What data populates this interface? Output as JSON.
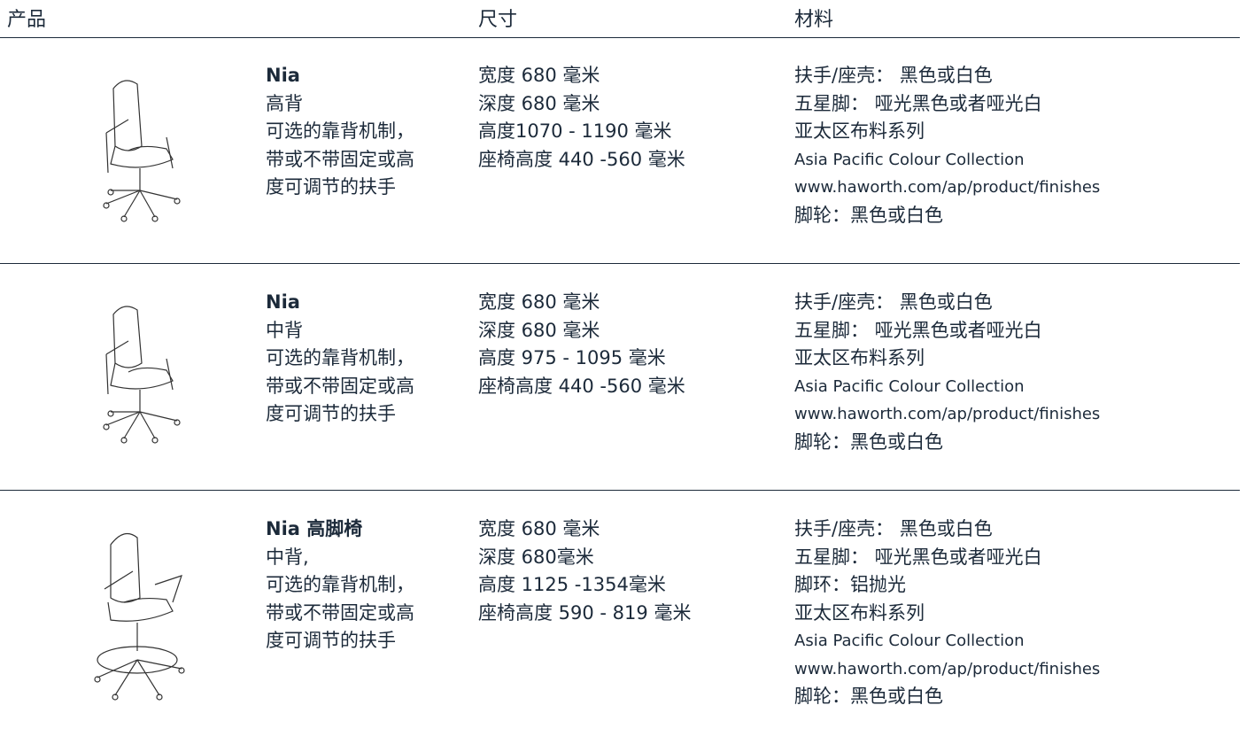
{
  "table": {
    "header": [
      "产品",
      "尺寸",
      "材料"
    ],
    "rows": [
      {
        "name": [
          "Nia",
          "高背",
          "可选的靠背机制，",
          "带或不带固定或高",
          "度可调节的扶手"
        ],
        "dimensions": [
          "宽度 680 毫米",
          "深度 680 毫米",
          "高度1070 - 1190 毫米",
          "座椅高度 440 -560 毫米"
        ],
        "materials": [
          "扶手/座壳： 黑色或白色",
          "五星脚： 哑光黑色或者哑光白",
          "亚太区布料系列",
          "Asia Pacific Colour Collection",
          "www.haworth.com/ap/product/finishes",
          "脚轮：黑色或白色"
        ]
      },
      {
        "name": [
          "Nia",
          "中背",
          "可选的靠背机制，",
          "带或不带固定或高",
          "度可调节的扶手"
        ],
        "dimensions": [
          "宽度 680 毫米",
          "深度 680 毫米",
          "高度 975 - 1095 毫米",
          "座椅高度 440 -560 毫米"
        ],
        "materials": [
          "扶手/座壳： 黑色或白色",
          "五星脚： 哑光黑色或者哑光白",
          "亚太区布料系列",
          "Asia Pacific Colour Collection",
          "www.haworth.com/ap/product/finishes",
          "脚轮：黑色或白色"
        ]
      },
      {
        "name": [
          "Nia 高脚椅",
          "中背,",
          "可选的靠背机制，",
          "带或不带固定或高",
          "度可调节的扶手"
        ],
        "dimensions": [
          "宽度 680 毫米",
          "深度 680毫米",
          "高度 1125 -1354毫米",
          "座椅高度 590 - 819 毫米"
        ],
        "materials": [
          "扶手/座壳： 黑色或白色",
          "五星脚： 哑光黑色或者哑光白",
          "脚环：铝抛光",
          "亚太区布料系列",
          "Asia Pacific Colour Collection",
          "www.haworth.com/ap/product/finishes",
          "脚轮：黑色或白色"
        ]
      }
    ]
  }
}
